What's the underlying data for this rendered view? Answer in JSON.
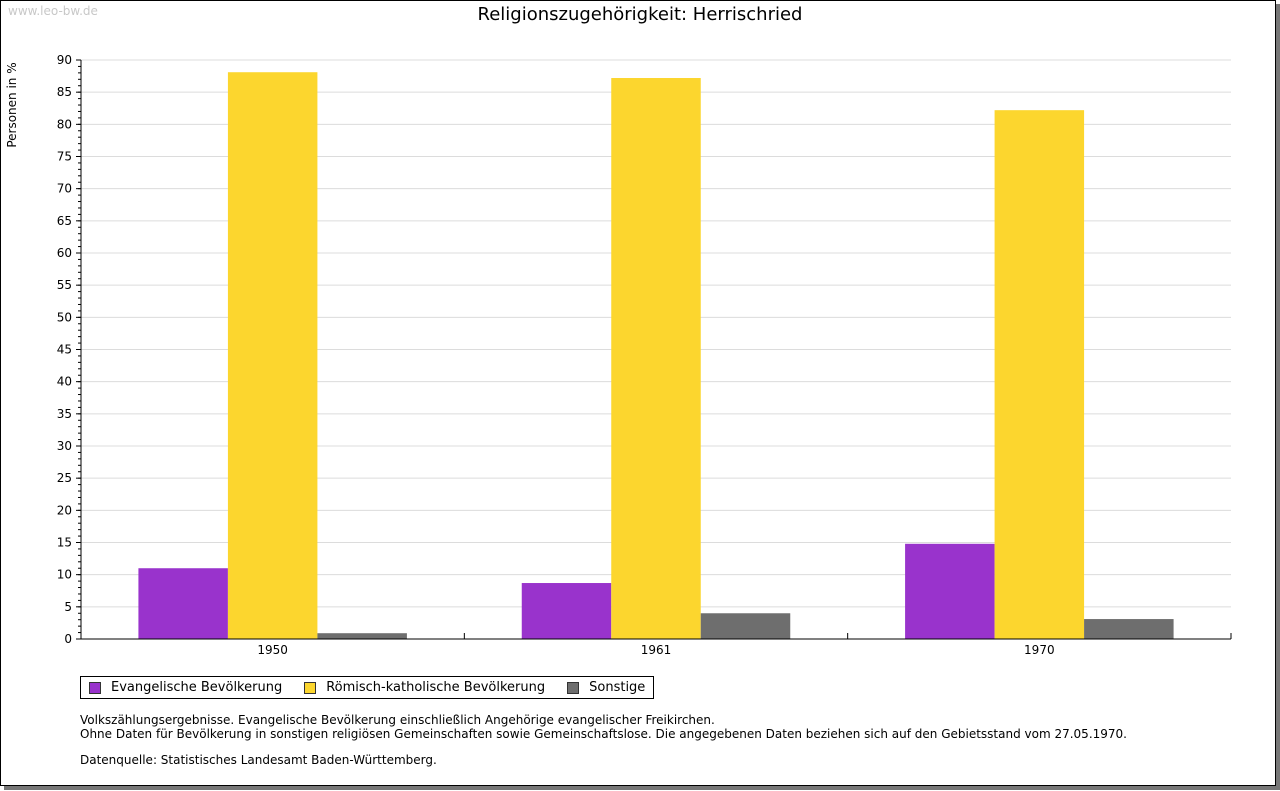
{
  "watermark": "www.leo-bw.de",
  "chart_data": {
    "type": "bar",
    "title": "Religionszugehörigkeit: Herrischried",
    "ylabel": "Personen in %",
    "xlabel": "",
    "ylim": [
      0,
      90
    ],
    "yticks": [
      0,
      5,
      10,
      15,
      20,
      25,
      30,
      35,
      40,
      45,
      50,
      55,
      60,
      65,
      70,
      75,
      80,
      85,
      90
    ],
    "categories": [
      "1950",
      "1961",
      "1970"
    ],
    "series": [
      {
        "name": "Evangelische Bevölkerung",
        "color": "#9933cc",
        "values": [
          11.0,
          8.7,
          14.8
        ]
      },
      {
        "name": "Römisch-katholische Bevölkerung",
        "color": "#fcd62e",
        "values": [
          88.1,
          87.2,
          82.2
        ]
      },
      {
        "name": "Sonstige",
        "color": "#6e6e6e",
        "values": [
          0.9,
          4.0,
          3.1
        ]
      }
    ],
    "grid": true,
    "legend": "bottom-left"
  },
  "notes": {
    "line1": "Volkszählungsergebnisse. Evangelische Bevölkerung einschließlich Angehörige evangelischer Freikirchen.",
    "line2": "Ohne Daten für Bevölkerung in sonstigen religiösen Gemeinschaften sowie Gemeinschaftslose. Die angegebenen Daten beziehen sich auf den Gebietsstand vom 27.05.1970.",
    "source": "Datenquelle: Statistisches Landesamt Baden-Württemberg."
  }
}
